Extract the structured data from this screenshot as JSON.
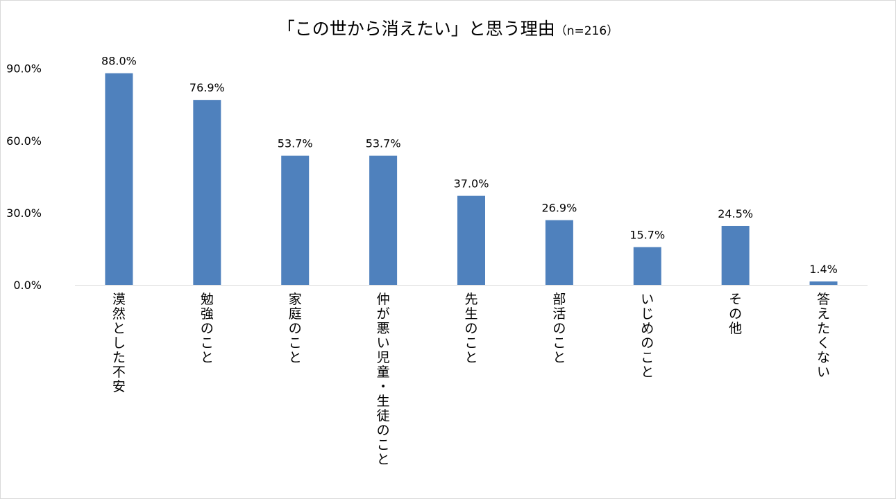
{
  "chart_data": {
    "type": "bar",
    "title": "「この世から消えたい」と思う理由",
    "subtitle": "（n=216）",
    "xlabel": "",
    "ylabel": "",
    "categories": [
      "漠然とした不安",
      "勉強のこと",
      "家庭のこと",
      "仲が悪い児童・生徒のこと",
      "先生のこと",
      "部活のこと",
      "いじめのこと",
      "その他",
      "答えたくない"
    ],
    "values": [
      88.0,
      76.9,
      53.7,
      53.7,
      37.0,
      26.9,
      15.7,
      24.5,
      1.4
    ],
    "data_labels": [
      "88.0%",
      "76.9%",
      "53.7%",
      "53.7%",
      "37.0%",
      "26.9%",
      "15.7%",
      "24.5%",
      "1.4%"
    ],
    "yticks": [
      0,
      30,
      60,
      90
    ],
    "ytick_labels": [
      "0.0%",
      "30.0%",
      "60.0%",
      "90.0%"
    ],
    "ylim": [
      0,
      90
    ],
    "grid": false,
    "legend": "none",
    "bar_color": "#4f81bd",
    "axis_color": "#d9d9d9"
  }
}
